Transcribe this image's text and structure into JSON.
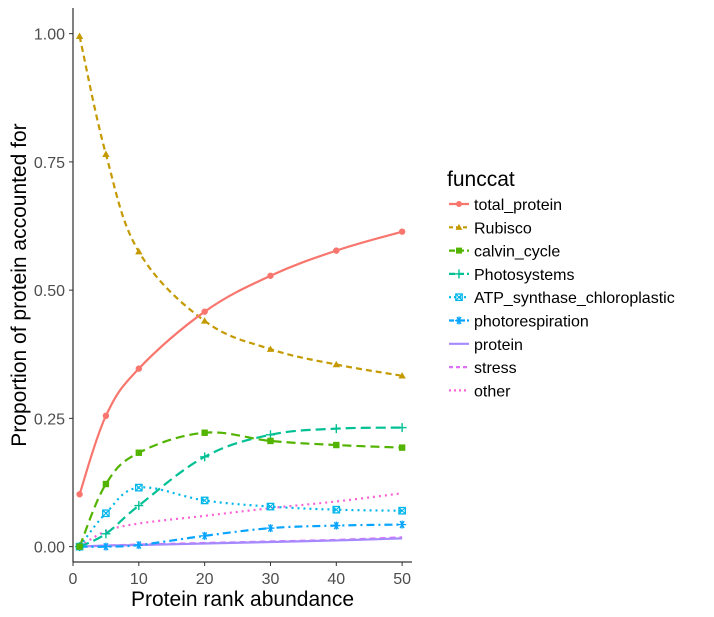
{
  "chart_data": {
    "type": "line",
    "xlabel": "Protein rank abundance",
    "ylabel": "Proportion of protein accounted for",
    "xlim": [
      0,
      51.5
    ],
    "ylim": [
      -0.03,
      1.05
    ],
    "xticks": [
      0,
      10,
      20,
      30,
      40,
      50
    ],
    "xtick_labels": [
      "0",
      "10",
      "20",
      "30",
      "40",
      "50"
    ],
    "yticks": [
      0.0,
      0.25,
      0.5,
      0.75,
      1.0
    ],
    "ytick_labels": [
      "0.00",
      "0.25",
      "0.50",
      "0.75",
      "1.00"
    ],
    "grid": false,
    "legend": {
      "title": "funccat",
      "position": "right"
    },
    "x": [
      1,
      5,
      10,
      20,
      30,
      40,
      50
    ],
    "series": [
      {
        "name": "total_protein",
        "color": "#F8766D",
        "dash": "solid",
        "marker": "circle",
        "values": [
          0.102,
          0.255,
          0.347,
          0.458,
          0.528,
          0.577,
          0.614
        ]
      },
      {
        "name": "Rubisco",
        "color": "#C49A00",
        "dash": "dashed",
        "marker": "triangle",
        "values": [
          0.995,
          0.765,
          0.575,
          0.44,
          0.385,
          0.355,
          0.333
        ]
      },
      {
        "name": "calvin_cycle",
        "color": "#53B400",
        "dash": "longdash",
        "marker": "square",
        "values": [
          0.0,
          0.122,
          0.183,
          0.222,
          0.206,
          0.198,
          0.193
        ]
      },
      {
        "name": "Photosystems",
        "color": "#00C094",
        "dash": "longdash2",
        "marker": "plus",
        "values": [
          0.0,
          0.025,
          0.08,
          0.175,
          0.218,
          0.23,
          0.232
        ]
      },
      {
        "name": "ATP_synthase_chloroplastic",
        "color": "#00B6EB",
        "dash": "dotted",
        "marker": "boxcross",
        "values": [
          0.0,
          0.065,
          0.115,
          0.09,
          0.078,
          0.072,
          0.07
        ]
      },
      {
        "name": "photorespiration",
        "color": "#06A4FF",
        "dash": "dotdash",
        "marker": "asterisk",
        "values": [
          0.0,
          0.0,
          0.003,
          0.021,
          0.036,
          0.041,
          0.043
        ]
      },
      {
        "name": "protein",
        "color": "#A58AFF",
        "dash": "solid",
        "marker": "none",
        "values": [
          0.0,
          0.002,
          0.003,
          0.006,
          0.009,
          0.012,
          0.016
        ]
      },
      {
        "name": "stress",
        "color": "#DF70F8",
        "dash": "dashed",
        "marker": "none",
        "values": [
          0.0,
          0.002,
          0.004,
          0.007,
          0.01,
          0.013,
          0.018
        ]
      },
      {
        "name": "other",
        "color": "#FB61D7",
        "dash": "dotted",
        "marker": "none",
        "values": [
          0.0,
          0.03,
          0.045,
          0.06,
          0.075,
          0.088,
          0.104
        ]
      }
    ]
  }
}
